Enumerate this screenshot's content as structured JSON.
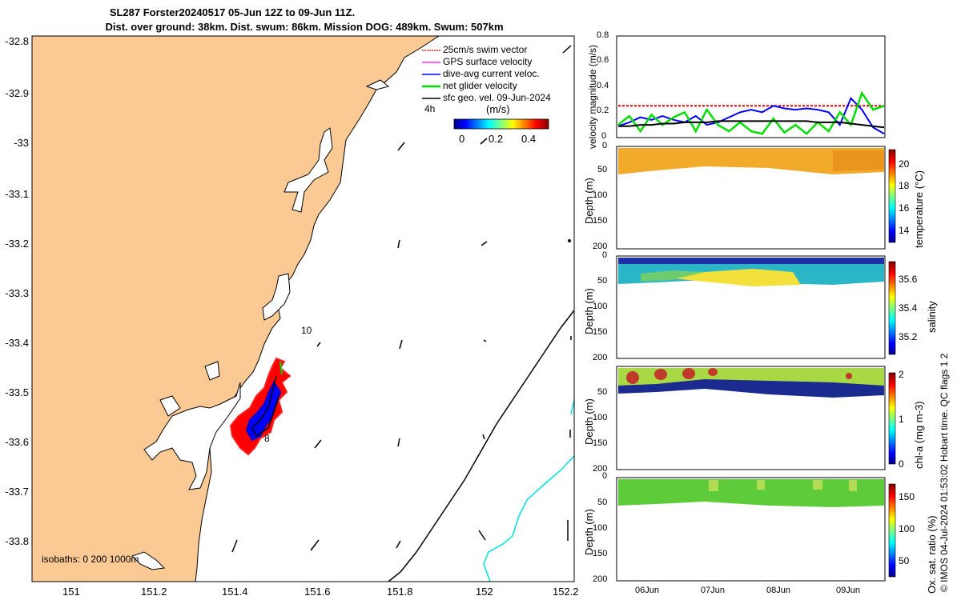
{
  "header": {
    "title_line1": "SL287 Forster20240517 05-Jun 12Z to 09-Jun 11Z.",
    "title_line2": "Dist. over ground: 38km. Dist. swum: 86km. Mission DOG: 489km. Swum: 507km"
  },
  "map": {
    "lat_ticks": [
      "-32.8",
      "-32.9",
      "-33",
      "-33.1",
      "-33.2",
      "-33.3",
      "-33.4",
      "-33.5",
      "-33.6",
      "-33.7",
      "-33.8"
    ],
    "lon_ticks": [
      "151",
      "151.2",
      "151.4",
      "151.6",
      "151.8",
      "152",
      "152.2"
    ],
    "isobath_label": "isobaths: 0   200  1000m",
    "contour_label_10": "10",
    "track_label_8": "8",
    "legend": {
      "items": [
        {
          "label": "25cm/s swim vector",
          "color": "#e00000"
        },
        {
          "label": "GPS surface velocity",
          "color": "#ff00ff"
        },
        {
          "label": "dive-avg current veloc.",
          "color": "#0000ff"
        },
        {
          "label": "net glider velocity",
          "color": "#00dd00"
        },
        {
          "label": "sfc geo. vel. 09-Jun-2024",
          "color": "#000000"
        }
      ],
      "time_label": "4h",
      "unit_label": "(m/s)",
      "colorbar_ticks": [
        "0",
        "0.2",
        "0.4"
      ]
    },
    "colors": {
      "land": "#fbc994",
      "sea": "#ffffff",
      "track_red": "#ff0000",
      "track_blue": "#0000ff",
      "isobath_1000": "#00e5e5"
    }
  },
  "panels": {
    "velocity": {
      "ylabel": "velocity magnitude (m/s)",
      "yticks": [
        "0",
        "0.2",
        "0.4",
        "0.6",
        "0.8"
      ],
      "chart_data": {
        "type": "line",
        "ylim": [
          0,
          0.8
        ],
        "series": [
          {
            "name": "25cm/s swim vector",
            "color": "#e00000",
            "values": [
              0.25,
              0.25,
              0.25,
              0.25,
              0.25,
              0.25,
              0.25,
              0.25,
              0.25,
              0.25,
              0.25,
              0.25,
              0.25,
              0.25,
              0.25,
              0.25,
              0.25,
              0.25,
              0.25,
              0.25,
              0.25,
              0.25,
              0.25,
              0.25,
              0.25
            ]
          },
          {
            "name": "dive-avg current veloc.",
            "color": "#0000ff",
            "values": [
              0.09,
              0.12,
              0.16,
              0.14,
              0.17,
              0.14,
              0.12,
              0.17,
              0.1,
              0.12,
              0.16,
              0.2,
              0.22,
              0.2,
              0.25,
              0.23,
              0.22,
              0.23,
              0.22,
              0.2,
              0.1,
              0.31,
              0.22,
              0.08,
              0.03
            ]
          },
          {
            "name": "net glider velocity",
            "color": "#00dd00",
            "values": [
              0.1,
              0.17,
              0.05,
              0.18,
              0.1,
              0.16,
              0.2,
              0.05,
              0.22,
              0.1,
              0.05,
              0.12,
              0.05,
              0.03,
              0.15,
              0.04,
              0.1,
              0.03,
              0.12,
              0.05,
              0.2,
              0.1,
              0.35,
              0.22,
              0.25
            ]
          },
          {
            "name": "sfc geo. vel.",
            "color": "#000000",
            "values": [
              0.09,
              0.09,
              0.1,
              0.1,
              0.11,
              0.11,
              0.12,
              0.12,
              0.12,
              0.13,
              0.13,
              0.13,
              0.13,
              0.13,
              0.13,
              0.13,
              0.13,
              0.13,
              0.12,
              0.12,
              0.12,
              0.11,
              0.1,
              0.09,
              0.08
            ]
          }
        ]
      }
    },
    "temperature": {
      "ylabel": "Depth (m)",
      "cbar_label": "temperature (°C)",
      "yticks": [
        "0",
        "50",
        "100",
        "150",
        "200"
      ],
      "cbar_ticks": [
        "20",
        "18",
        "16",
        "14"
      ]
    },
    "salinity": {
      "ylabel": "Depth (m)",
      "cbar_label": "salinity",
      "yticks": [
        "0",
        "50",
        "100",
        "150",
        "200"
      ],
      "cbar_ticks": [
        "35.6",
        "35.4",
        "35.2"
      ]
    },
    "chla": {
      "ylabel": "Depth (m)",
      "cbar_label": "chl-a (mg m-3)",
      "yticks": [
        "0",
        "50",
        "100",
        "150",
        "200"
      ],
      "cbar_ticks": [
        "2",
        "1",
        "0"
      ]
    },
    "oxygen": {
      "ylabel": "Depth (m)",
      "cbar_label": "Ox. sat. ratio (%)",
      "yticks": [
        "0",
        "50",
        "100",
        "150",
        "200"
      ],
      "cbar_ticks": [
        "150",
        "100",
        "50"
      ]
    },
    "date_ticks": [
      "06Jun",
      "07Jun",
      "08Jun",
      "09Jun"
    ]
  },
  "footer": {
    "credit": "© IMOS 04-Jul-2024 01:53:02 Hobart time. QC flags 1  2"
  }
}
